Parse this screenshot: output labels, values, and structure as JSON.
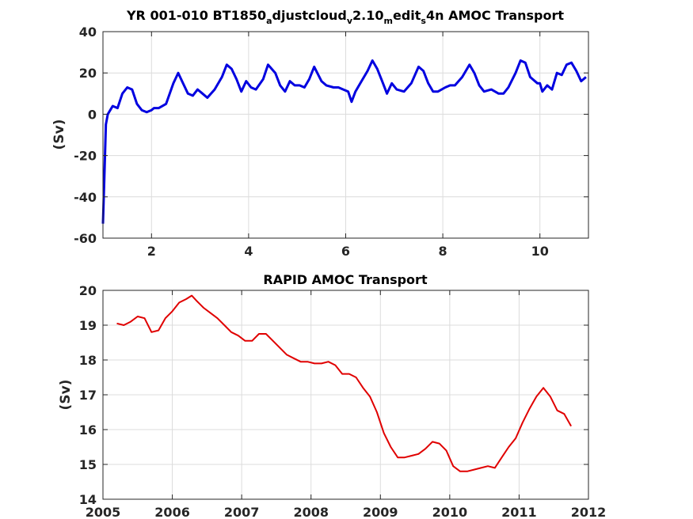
{
  "chart_data": [
    {
      "type": "line",
      "title_parts": [
        {
          "t": "YR 001-010 BT1850",
          "sub": false
        },
        {
          "t": "a",
          "sub": true
        },
        {
          "t": "djustcloud",
          "sub": false
        },
        {
          "t": "v",
          "sub": true
        },
        {
          "t": "2.10",
          "sub": false
        },
        {
          "t": "m",
          "sub": true
        },
        {
          "t": "edit",
          "sub": false
        },
        {
          "t": "s",
          "sub": true
        },
        {
          "t": "4n AMOC Transport",
          "sub": false
        }
      ],
      "xlabel": "",
      "ylabel": "(Sv)",
      "xlim": [
        1,
        11
      ],
      "ylim": [
        -60,
        40
      ],
      "xticks": [
        2,
        4,
        6,
        8,
        10
      ],
      "yticks": [
        -60,
        -40,
        -20,
        0,
        20,
        40
      ],
      "grid": true,
      "color": "#0000e0",
      "series": [
        {
          "x": [
            1.0,
            1.03,
            1.06,
            1.1,
            1.15,
            1.2,
            1.3,
            1.4,
            1.5,
            1.6,
            1.7,
            1.8,
            1.9,
            2.0,
            2.05,
            2.15,
            2.3,
            2.45,
            2.55,
            2.65,
            2.75,
            2.85,
            2.95,
            3.05,
            3.15,
            3.3,
            3.45,
            3.55,
            3.65,
            3.75,
            3.85,
            3.95,
            4.05,
            4.15,
            4.3,
            4.4,
            4.55,
            4.65,
            4.75,
            4.85,
            4.95,
            5.05,
            5.15,
            5.25,
            5.35,
            5.5,
            5.6,
            5.75,
            5.85,
            5.95,
            6.05,
            6.12,
            6.2,
            6.3,
            6.45,
            6.55,
            6.65,
            6.75,
            6.85,
            6.95,
            7.05,
            7.2,
            7.35,
            7.5,
            7.6,
            7.7,
            7.8,
            7.9,
            8.05,
            8.15,
            8.25,
            8.4,
            8.55,
            8.65,
            8.75,
            8.85,
            9.0,
            9.15,
            9.25,
            9.35,
            9.5,
            9.6,
            9.7,
            9.8,
            9.95,
            10.0,
            10.05,
            10.15,
            10.25,
            10.35,
            10.45,
            10.55,
            10.65,
            10.75,
            10.85,
            10.95
          ],
          "y": [
            -53,
            -30,
            -5,
            0,
            2,
            4,
            3,
            10,
            13,
            12,
            5,
            2,
            1,
            2,
            3,
            3,
            5,
            15,
            20,
            15,
            10,
            9,
            12,
            10,
            8,
            12,
            18,
            24,
            22,
            17,
            11,
            16,
            13,
            12,
            17,
            24,
            20,
            14,
            11,
            16,
            14,
            14,
            13,
            17,
            23,
            16,
            14,
            13,
            13,
            12,
            11,
            6,
            11,
            15,
            21,
            26,
            22,
            16,
            10,
            15,
            12,
            11,
            15,
            23,
            21,
            15,
            11,
            11,
            13,
            14,
            14,
            18,
            24,
            20,
            14,
            11,
            12,
            10,
            10,
            13,
            20,
            26,
            25,
            18,
            15,
            15,
            11,
            14,
            12,
            20,
            19,
            24,
            25,
            21,
            16,
            18
          ]
        }
      ]
    },
    {
      "type": "line",
      "title": "RAPID AMOC Transport",
      "xlabel": "",
      "ylabel": "(Sv)",
      "xlim": [
        2005,
        2012
      ],
      "ylim": [
        14,
        20
      ],
      "xticks": [
        2005,
        2006,
        2007,
        2008,
        2009,
        2010,
        2011,
        2012
      ],
      "yticks": [
        14,
        15,
        16,
        17,
        18,
        19,
        20
      ],
      "grid": true,
      "color": "#e00000",
      "series": [
        {
          "x": [
            2005.2,
            2005.3,
            2005.4,
            2005.5,
            2005.6,
            2005.7,
            2005.8,
            2005.9,
            2006.0,
            2006.1,
            2006.2,
            2006.28,
            2006.35,
            2006.45,
            2006.55,
            2006.65,
            2006.75,
            2006.85,
            2006.95,
            2007.05,
            2007.15,
            2007.25,
            2007.35,
            2007.45,
            2007.55,
            2007.65,
            2007.75,
            2007.85,
            2007.95,
            2008.05,
            2008.15,
            2008.25,
            2008.35,
            2008.45,
            2008.55,
            2008.65,
            2008.75,
            2008.85,
            2008.95,
            2009.05,
            2009.15,
            2009.25,
            2009.35,
            2009.45,
            2009.55,
            2009.65,
            2009.75,
            2009.85,
            2009.95,
            2010.05,
            2010.15,
            2010.25,
            2010.35,
            2010.45,
            2010.55,
            2010.65,
            2010.75,
            2010.85,
            2010.95,
            2011.05,
            2011.15,
            2011.25,
            2011.35,
            2011.45,
            2011.55,
            2011.65,
            2011.75
          ],
          "y": [
            19.05,
            19.0,
            19.1,
            19.25,
            19.2,
            18.8,
            18.85,
            19.2,
            19.4,
            19.65,
            19.75,
            19.85,
            19.7,
            19.5,
            19.35,
            19.2,
            19.0,
            18.8,
            18.7,
            18.55,
            18.55,
            18.75,
            18.75,
            18.55,
            18.35,
            18.15,
            18.05,
            17.95,
            17.95,
            17.9,
            17.9,
            17.95,
            17.85,
            17.6,
            17.6,
            17.5,
            17.2,
            16.95,
            16.5,
            15.9,
            15.5,
            15.2,
            15.2,
            15.25,
            15.3,
            15.45,
            15.65,
            15.6,
            15.4,
            14.95,
            14.8,
            14.8,
            14.85,
            14.9,
            14.95,
            14.9,
            15.2,
            15.5,
            15.75,
            16.2,
            16.6,
            16.95,
            17.2,
            16.95,
            16.55,
            16.45,
            16.1
          ]
        }
      ]
    }
  ]
}
